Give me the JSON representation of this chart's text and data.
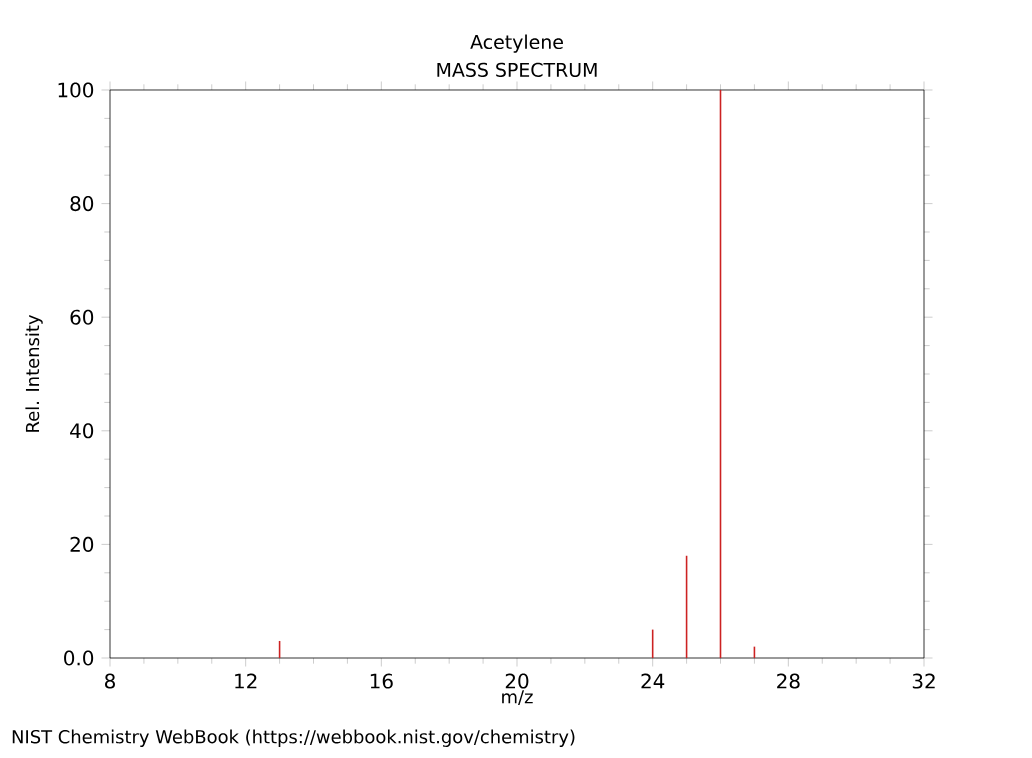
{
  "chart_data": {
    "type": "bar",
    "title": "Acetylene",
    "subtitle": "MASS SPECTRUM",
    "xlabel": "m/z",
    "ylabel": "Rel. Intensity",
    "x": [
      13,
      24,
      25,
      26,
      27
    ],
    "values": [
      3,
      5,
      18,
      100,
      2
    ],
    "color": "#cc2222",
    "xlim": [
      8,
      32
    ],
    "xticks": [
      8,
      12,
      16,
      20,
      24,
      28,
      32
    ],
    "ylim": [
      0,
      100
    ],
    "yticks": [
      {
        "value": 0,
        "label": "0.0"
      },
      20,
      40,
      60,
      80,
      100
    ],
    "annotations": [
      "NIST Chemistry WebBook (https://webbook.nist.gov/chemistry)"
    ]
  }
}
